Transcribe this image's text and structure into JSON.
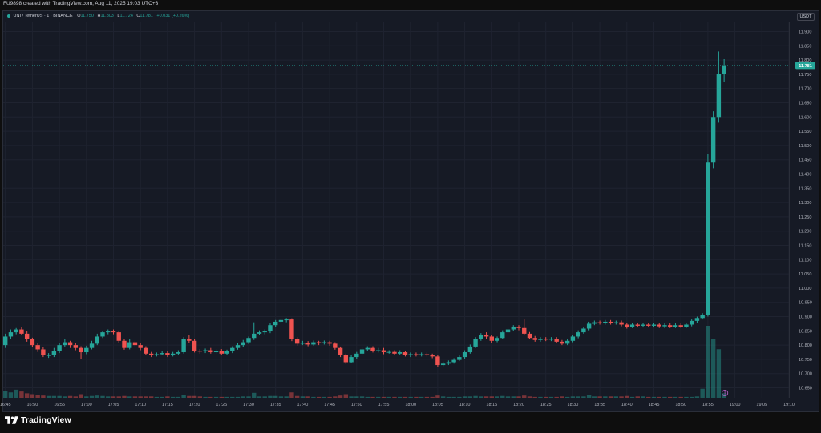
{
  "header": {
    "created_text": "FU9898 created with TradingView.com, Aug 11, 2025 19:03 UTC+3"
  },
  "legend": {
    "symbol": "UNI / TetherUS · 1 · BINANCE",
    "open_label": "O",
    "open": "11.750",
    "high_label": "H",
    "high": "11.803",
    "low_label": "L",
    "low": "11.724",
    "close_label": "C",
    "close": "11.781",
    "change": "+0.031 (+0.26%)"
  },
  "price_axis": {
    "currency": "USDT",
    "last_price_label": "11.781",
    "ticks": [
      "11.900",
      "11.850",
      "11.800",
      "11.750",
      "11.700",
      "11.650",
      "11.600",
      "11.550",
      "11.500",
      "11.450",
      "11.400",
      "11.350",
      "11.300",
      "11.250",
      "11.200",
      "11.150",
      "11.100",
      "11.050",
      "11.000",
      "10.950",
      "10.900",
      "10.850",
      "10.800",
      "10.750",
      "10.700",
      "10.650"
    ]
  },
  "time_axis": {
    "ticks": [
      "16:45",
      "16:50",
      "16:55",
      "17:00",
      "17:05",
      "17:10",
      "17:15",
      "17:20",
      "17:25",
      "17:30",
      "17:35",
      "17:40",
      "17:45",
      "17:50",
      "17:55",
      "18:00",
      "18:05",
      "18:10",
      "18:15",
      "18:20",
      "18:25",
      "18:30",
      "18:35",
      "18:40",
      "18:45",
      "18:50",
      "18:55",
      "19:00",
      "19:05",
      "19:10"
    ]
  },
  "branding": {
    "name": "TradingView"
  },
  "colors": {
    "up": "#26a69a",
    "down": "#ef5350",
    "background": "#161a25",
    "grid": "#1f2330",
    "axis_text": "#b2b5be",
    "last_price_badge": "#26a69a"
  },
  "chart_data": {
    "type": "candlestick",
    "symbol": "UNI / TetherUS",
    "interval": "1",
    "exchange": "BINANCE",
    "ylim": [
      10.615,
      11.935
    ],
    "xlim_minutes": [
      -0.4,
      145
    ],
    "x_unit": "minutes since 16:45",
    "candles": [
      [
        0,
        10.8,
        10.83,
        10.84,
        10.79
      ],
      [
        1,
        10.83,
        10.845,
        10.855,
        10.82
      ],
      [
        2,
        10.845,
        10.855,
        10.86,
        10.838
      ],
      [
        3,
        10.855,
        10.84,
        10.862,
        10.835
      ],
      [
        4,
        10.84,
        10.82,
        10.848,
        10.812
      ],
      [
        5,
        10.82,
        10.8,
        10.826,
        10.792
      ],
      [
        6,
        10.8,
        10.785,
        10.808,
        10.776
      ],
      [
        7,
        10.785,
        10.765,
        10.792,
        10.758
      ],
      [
        8,
        10.765,
        10.765,
        10.772,
        10.755
      ],
      [
        9,
        10.765,
        10.78,
        10.79,
        10.758
      ],
      [
        10,
        10.78,
        10.8,
        10.808,
        10.772
      ],
      [
        11,
        10.8,
        10.81,
        10.822,
        10.795
      ],
      [
        12,
        10.81,
        10.8,
        10.815,
        10.79
      ],
      [
        13,
        10.8,
        10.79,
        10.808,
        10.782
      ],
      [
        14,
        10.79,
        10.775,
        10.796,
        10.752
      ],
      [
        15,
        10.775,
        10.79,
        10.798,
        10.768
      ],
      [
        16,
        10.79,
        10.805,
        10.815,
        10.785
      ],
      [
        17,
        10.805,
        10.83,
        10.84,
        10.8
      ],
      [
        18,
        10.83,
        10.845,
        10.85,
        10.825
      ],
      [
        19,
        10.845,
        10.848,
        10.855,
        10.838
      ],
      [
        20,
        10.848,
        10.845,
        10.855,
        10.838
      ],
      [
        21,
        10.845,
        10.815,
        10.85,
        10.808
      ],
      [
        22,
        10.815,
        10.79,
        10.822,
        10.784
      ],
      [
        23,
        10.79,
        10.81,
        10.82,
        10.785
      ],
      [
        24,
        10.81,
        10.8,
        10.815,
        10.794
      ],
      [
        25,
        10.8,
        10.79,
        10.806,
        10.782
      ],
      [
        26,
        10.79,
        10.77,
        10.796,
        10.764
      ],
      [
        27,
        10.77,
        10.765,
        10.776,
        10.758
      ],
      [
        28,
        10.765,
        10.768,
        10.774,
        10.76
      ],
      [
        29,
        10.768,
        10.772,
        10.78,
        10.764
      ],
      [
        30,
        10.772,
        10.765,
        10.778,
        10.758
      ],
      [
        31,
        10.765,
        10.77,
        10.776,
        10.76
      ],
      [
        32,
        10.77,
        10.775,
        10.782,
        10.765
      ],
      [
        33,
        10.775,
        10.82,
        10.828,
        10.77
      ],
      [
        34,
        10.82,
        10.815,
        10.835,
        10.808
      ],
      [
        35,
        10.815,
        10.78,
        10.822,
        10.774
      ],
      [
        36,
        10.78,
        10.778,
        10.786,
        10.77
      ],
      [
        37,
        10.778,
        10.782,
        10.788,
        10.772
      ],
      [
        38,
        10.782,
        10.775,
        10.79,
        10.77
      ],
      [
        39,
        10.775,
        10.78,
        10.786,
        10.77
      ],
      [
        40,
        10.78,
        10.77,
        10.786,
        10.764
      ],
      [
        41,
        10.77,
        10.778,
        10.784,
        10.766
      ],
      [
        42,
        10.778,
        10.79,
        10.796,
        10.772
      ],
      [
        43,
        10.79,
        10.8,
        10.806,
        10.784
      ],
      [
        44,
        10.8,
        10.81,
        10.818,
        10.794
      ],
      [
        45,
        10.81,
        10.825,
        10.83,
        10.804
      ],
      [
        46,
        10.825,
        10.84,
        10.88,
        10.818
      ],
      [
        47,
        10.84,
        10.845,
        10.852,
        10.835
      ],
      [
        48,
        10.845,
        10.848,
        10.855,
        10.838
      ],
      [
        49,
        10.848,
        10.87,
        10.876,
        10.842
      ],
      [
        50,
        10.87,
        10.882,
        10.888,
        10.864
      ],
      [
        51,
        10.882,
        10.888,
        10.893,
        10.876
      ],
      [
        52,
        10.888,
        10.89,
        10.895,
        10.88
      ],
      [
        53,
        10.89,
        10.82,
        10.894,
        10.814
      ],
      [
        54,
        10.82,
        10.805,
        10.828,
        10.798
      ],
      [
        55,
        10.805,
        10.808,
        10.815,
        10.8
      ],
      [
        56,
        10.808,
        10.802,
        10.814,
        10.796
      ],
      [
        57,
        10.802,
        10.81,
        10.816,
        10.798
      ],
      [
        58,
        10.81,
        10.806,
        10.815,
        10.8
      ],
      [
        59,
        10.806,
        10.81,
        10.816,
        10.802
      ],
      [
        60,
        10.81,
        10.805,
        10.815,
        10.798
      ],
      [
        61,
        10.805,
        10.79,
        10.81,
        10.784
      ],
      [
        62,
        10.79,
        10.765,
        10.795,
        10.758
      ],
      [
        63,
        10.765,
        10.74,
        10.77,
        10.734
      ],
      [
        64,
        10.74,
        10.758,
        10.764,
        10.736
      ],
      [
        65,
        10.758,
        10.77,
        10.776,
        10.752
      ],
      [
        66,
        10.77,
        10.785,
        10.792,
        10.764
      ],
      [
        67,
        10.785,
        10.79,
        10.796,
        10.78
      ],
      [
        68,
        10.79,
        10.78,
        10.796,
        10.774
      ],
      [
        69,
        10.78,
        10.782,
        10.79,
        10.774
      ],
      [
        70,
        10.782,
        10.775,
        10.79,
        10.768
      ],
      [
        71,
        10.775,
        10.776,
        10.782,
        10.77
      ],
      [
        72,
        10.776,
        10.77,
        10.782,
        10.764
      ],
      [
        73,
        10.77,
        10.775,
        10.782,
        10.766
      ],
      [
        74,
        10.775,
        10.765,
        10.78,
        10.76
      ],
      [
        75,
        10.765,
        10.768,
        10.774,
        10.758
      ],
      [
        76,
        10.768,
        10.765,
        10.774,
        10.76
      ],
      [
        77,
        10.765,
        10.768,
        10.774,
        10.76
      ],
      [
        78,
        10.768,
        10.764,
        10.774,
        10.76
      ],
      [
        79,
        10.764,
        10.76,
        10.77,
        10.754
      ],
      [
        80,
        10.76,
        10.73,
        10.766,
        10.724
      ],
      [
        81,
        10.73,
        10.735,
        10.742,
        10.726
      ],
      [
        82,
        10.735,
        10.74,
        10.746,
        10.73
      ],
      [
        83,
        10.74,
        10.748,
        10.754,
        10.735
      ],
      [
        84,
        10.748,
        10.758,
        10.764,
        10.744
      ],
      [
        85,
        10.758,
        10.775,
        10.782,
        10.752
      ],
      [
        86,
        10.775,
        10.795,
        10.802,
        10.77
      ],
      [
        87,
        10.795,
        10.82,
        10.828,
        10.79
      ],
      [
        88,
        10.82,
        10.835,
        10.842,
        10.815
      ],
      [
        89,
        10.835,
        10.83,
        10.845,
        10.822
      ],
      [
        90,
        10.83,
        10.815,
        10.836,
        10.808
      ],
      [
        91,
        10.815,
        10.825,
        10.83,
        10.81
      ],
      [
        92,
        10.825,
        10.845,
        10.852,
        10.82
      ],
      [
        93,
        10.845,
        10.855,
        10.862,
        10.84
      ],
      [
        94,
        10.855,
        10.865,
        10.87,
        10.85
      ],
      [
        95,
        10.865,
        10.86,
        10.87,
        10.852
      ],
      [
        96,
        10.86,
        10.84,
        10.89,
        10.834
      ],
      [
        97,
        10.84,
        10.825,
        10.846,
        10.82
      ],
      [
        98,
        10.825,
        10.818,
        10.832,
        10.812
      ],
      [
        99,
        10.818,
        10.822,
        10.828,
        10.812
      ],
      [
        100,
        10.822,
        10.82,
        10.828,
        10.814
      ],
      [
        101,
        10.82,
        10.822,
        10.828,
        10.814
      ],
      [
        102,
        10.822,
        10.812,
        10.828,
        10.806
      ],
      [
        103,
        10.812,
        10.805,
        10.818,
        10.8
      ],
      [
        104,
        10.805,
        10.815,
        10.822,
        10.8
      ],
      [
        105,
        10.815,
        10.83,
        10.836,
        10.81
      ],
      [
        106,
        10.83,
        10.845,
        10.852,
        10.824
      ],
      [
        107,
        10.845,
        10.858,
        10.864,
        10.84
      ],
      [
        108,
        10.858,
        10.875,
        10.882,
        10.852
      ],
      [
        109,
        10.875,
        10.88,
        10.886,
        10.87
      ],
      [
        110,
        10.88,
        10.878,
        10.886,
        10.872
      ],
      [
        111,
        10.878,
        10.882,
        10.888,
        10.872
      ],
      [
        112,
        10.882,
        10.878,
        10.888,
        10.872
      ],
      [
        113,
        10.878,
        10.88,
        10.886,
        10.872
      ],
      [
        114,
        10.88,
        10.872,
        10.886,
        10.866
      ],
      [
        115,
        10.872,
        10.865,
        10.878,
        10.858
      ],
      [
        116,
        10.865,
        10.872,
        10.878,
        10.86
      ],
      [
        117,
        10.872,
        10.868,
        10.878,
        10.862
      ],
      [
        118,
        10.868,
        10.872,
        10.878,
        10.862
      ],
      [
        119,
        10.872,
        10.868,
        10.878,
        10.862
      ],
      [
        120,
        10.868,
        10.872,
        10.878,
        10.862
      ],
      [
        121,
        10.872,
        10.866,
        10.878,
        10.86
      ],
      [
        122,
        10.866,
        10.87,
        10.876,
        10.86
      ],
      [
        123,
        10.87,
        10.865,
        10.876,
        10.86
      ],
      [
        124,
        10.865,
        10.87,
        10.876,
        10.86
      ],
      [
        125,
        10.87,
        10.865,
        10.876,
        10.86
      ],
      [
        126,
        10.865,
        10.872,
        10.878,
        10.86
      ],
      [
        127,
        10.872,
        10.885,
        10.89,
        10.866
      ],
      [
        128,
        10.885,
        10.895,
        10.9,
        10.878
      ],
      [
        129,
        10.895,
        10.905,
        10.912,
        10.89
      ],
      [
        130,
        10.905,
        11.44,
        11.47,
        10.9
      ],
      [
        131,
        11.44,
        11.6,
        11.62,
        11.42
      ],
      [
        132,
        11.6,
        11.75,
        11.83,
        11.58
      ],
      [
        133,
        11.75,
        11.781,
        11.803,
        11.724
      ]
    ],
    "volumes": [
      [
        0,
        16
      ],
      [
        1,
        12
      ],
      [
        2,
        18
      ],
      [
        3,
        14
      ],
      [
        4,
        10
      ],
      [
        5,
        8
      ],
      [
        6,
        6
      ],
      [
        7,
        5
      ],
      [
        8,
        4
      ],
      [
        9,
        4
      ],
      [
        10,
        4
      ],
      [
        11,
        3
      ],
      [
        12,
        4
      ],
      [
        13,
        3
      ],
      [
        14,
        8
      ],
      [
        15,
        3
      ],
      [
        16,
        4
      ],
      [
        17,
        5
      ],
      [
        18,
        4
      ],
      [
        19,
        3
      ],
      [
        20,
        3
      ],
      [
        21,
        3
      ],
      [
        22,
        4
      ],
      [
        23,
        3
      ],
      [
        24,
        3
      ],
      [
        25,
        3
      ],
      [
        26,
        3
      ],
      [
        27,
        3
      ],
      [
        28,
        2
      ],
      [
        29,
        2
      ],
      [
        30,
        3
      ],
      [
        31,
        2
      ],
      [
        32,
        2
      ],
      [
        33,
        6
      ],
      [
        34,
        4
      ],
      [
        35,
        4
      ],
      [
        36,
        3
      ],
      [
        37,
        2
      ],
      [
        38,
        2
      ],
      [
        39,
        2
      ],
      [
        40,
        2
      ],
      [
        41,
        2
      ],
      [
        42,
        2
      ],
      [
        43,
        2
      ],
      [
        44,
        3
      ],
      [
        45,
        3
      ],
      [
        46,
        11
      ],
      [
        47,
        3
      ],
      [
        48,
        3
      ],
      [
        49,
        4
      ],
      [
        50,
        4
      ],
      [
        51,
        3
      ],
      [
        52,
        3
      ],
      [
        53,
        12
      ],
      [
        54,
        4
      ],
      [
        55,
        3
      ],
      [
        56,
        3
      ],
      [
        57,
        2
      ],
      [
        58,
        2
      ],
      [
        59,
        2
      ],
      [
        60,
        2
      ],
      [
        61,
        3
      ],
      [
        62,
        5
      ],
      [
        63,
        8
      ],
      [
        64,
        3
      ],
      [
        65,
        3
      ],
      [
        66,
        3
      ],
      [
        67,
        2
      ],
      [
        68,
        2
      ],
      [
        69,
        2
      ],
      [
        70,
        2
      ],
      [
        71,
        2
      ],
      [
        72,
        2
      ],
      [
        73,
        2
      ],
      [
        74,
        2
      ],
      [
        75,
        2
      ],
      [
        76,
        2
      ],
      [
        77,
        2
      ],
      [
        78,
        2
      ],
      [
        79,
        2
      ],
      [
        80,
        5
      ],
      [
        81,
        3
      ],
      [
        82,
        2
      ],
      [
        83,
        2
      ],
      [
        84,
        2
      ],
      [
        85,
        3
      ],
      [
        86,
        3
      ],
      [
        87,
        4
      ],
      [
        88,
        3
      ],
      [
        89,
        3
      ],
      [
        90,
        3
      ],
      [
        91,
        3
      ],
      [
        92,
        4
      ],
      [
        93,
        3
      ],
      [
        94,
        3
      ],
      [
        95,
        3
      ],
      [
        96,
        5
      ],
      [
        97,
        3
      ],
      [
        98,
        2
      ],
      [
        99,
        2
      ],
      [
        100,
        2
      ],
      [
        101,
        2
      ],
      [
        102,
        2
      ],
      [
        103,
        3
      ],
      [
        104,
        2
      ],
      [
        105,
        3
      ],
      [
        106,
        3
      ],
      [
        107,
        3
      ],
      [
        108,
        6
      ],
      [
        109,
        3
      ],
      [
        110,
        3
      ],
      [
        111,
        3
      ],
      [
        112,
        3
      ],
      [
        113,
        3
      ],
      [
        114,
        3
      ],
      [
        115,
        4
      ],
      [
        116,
        2
      ],
      [
        117,
        3
      ],
      [
        118,
        3
      ],
      [
        119,
        2
      ],
      [
        120,
        2
      ],
      [
        121,
        2
      ],
      [
        122,
        2
      ],
      [
        123,
        2
      ],
      [
        124,
        2
      ],
      [
        125,
        2
      ],
      [
        126,
        2
      ],
      [
        127,
        2
      ],
      [
        128,
        3
      ],
      [
        129,
        20
      ],
      [
        130,
        160
      ],
      [
        131,
        130
      ],
      [
        132,
        108
      ],
      [
        133,
        10
      ]
    ],
    "volume_max": 160,
    "last_price": 11.781,
    "grid": true
  }
}
